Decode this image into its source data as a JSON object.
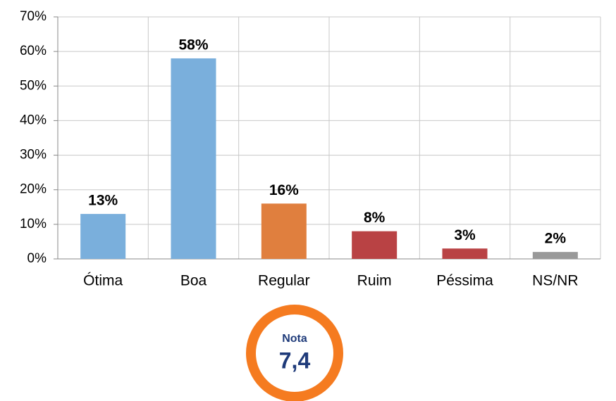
{
  "chart_data": {
    "type": "bar",
    "categories": [
      "Ótima",
      "Boa",
      "Regular",
      "Ruim",
      "Péssima",
      "NS/NR"
    ],
    "values": [
      13,
      58,
      16,
      8,
      3,
      2
    ],
    "value_labels": [
      "13%",
      "58%",
      "16%",
      "8%",
      "3%",
      "2%"
    ],
    "colors": [
      "#7aafdc",
      "#7aafdc",
      "#e07f3e",
      "#b94244",
      "#b94244",
      "#999999"
    ],
    "ylim": [
      0,
      70
    ],
    "yticks": [
      {
        "value": 0,
        "label": "0%"
      },
      {
        "value": 10,
        "label": "10%"
      },
      {
        "value": 20,
        "label": "20%"
      },
      {
        "value": 30,
        "label": "30%"
      },
      {
        "value": 40,
        "label": "40%"
      },
      {
        "value": 50,
        "label": "50%"
      },
      {
        "value": 60,
        "label": "60%"
      },
      {
        "value": 70,
        "label": "70%"
      }
    ],
    "grid": true,
    "annotation": {
      "title": "Nota",
      "text": "7,4"
    }
  }
}
